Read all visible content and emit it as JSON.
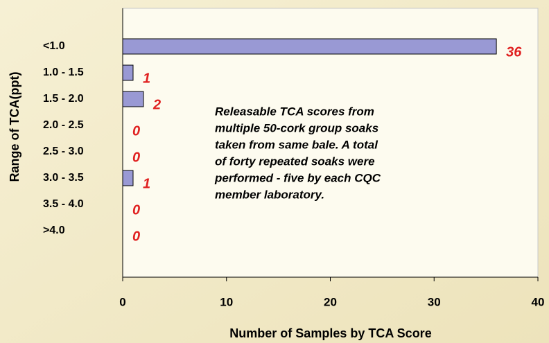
{
  "chart_data": {
    "type": "bar",
    "orientation": "horizontal",
    "categories": [
      "<1.0",
      "1.0 - 1.5",
      "1.5 - 2.0",
      "2.0 - 2.5",
      "2.5 - 3.0",
      "3.0 - 3.5",
      "3.5 - 4.0",
      ">4.0"
    ],
    "values": [
      36,
      1,
      2,
      0,
      0,
      1,
      0,
      0
    ],
    "color": "#9999d4",
    "value_label_color": "#e02020",
    "xlim": [
      0,
      40
    ],
    "xticks": [
      0,
      10,
      20,
      30,
      40
    ],
    "x_label": "Number of Samples by TCA Score",
    "y_label": "Range of TCA(ppt)",
    "annotation": [
      "Releasable TCA scores from",
      "multiple 50-cork group soaks",
      "taken from same bale. A total",
      "of forty repeated soaks were",
      "performed - five by each CQC",
      "member laboratory."
    ]
  }
}
